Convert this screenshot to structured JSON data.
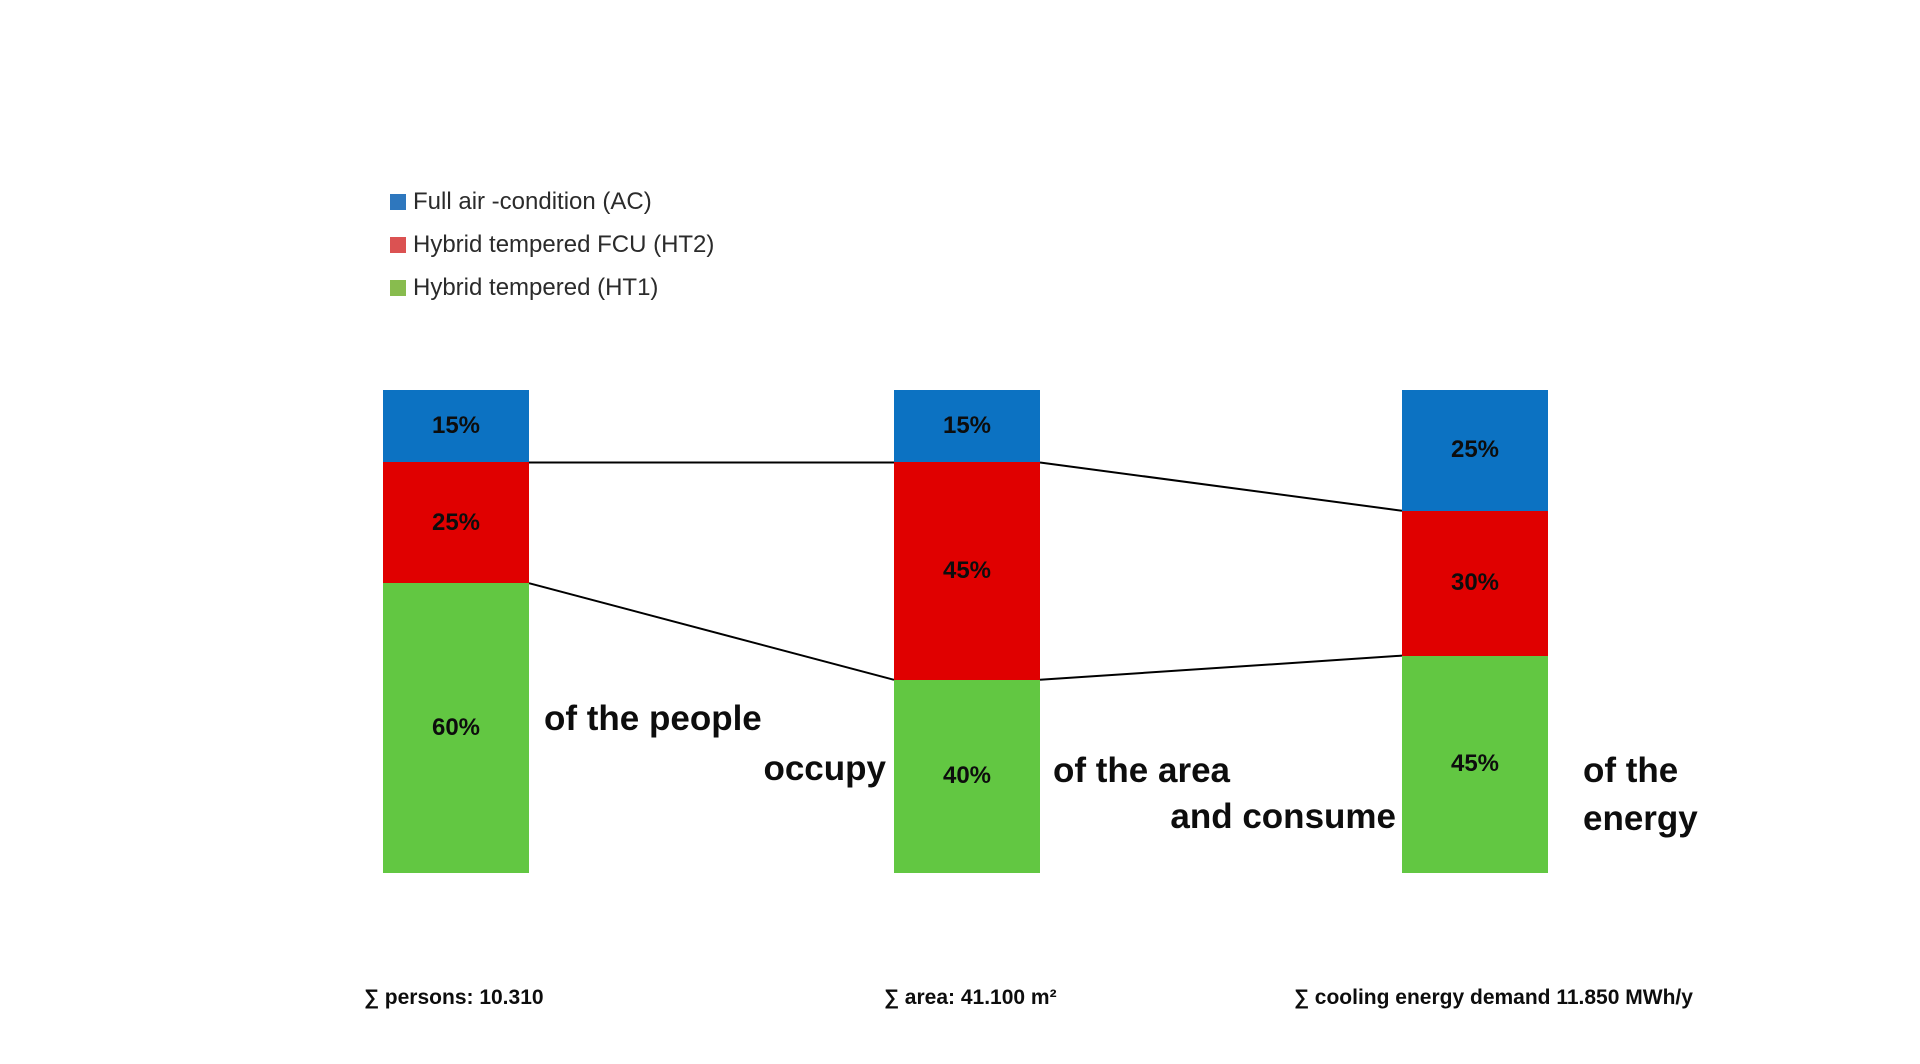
{
  "canvas": {
    "background": "#ffffff"
  },
  "chart_data": {
    "type": "bar",
    "subtype": "percent-stacked-bars-with-flow-connectors",
    "title": "",
    "categories": [
      "people",
      "area",
      "cooling energy"
    ],
    "series": [
      {
        "name": "Full air -condition (AC)",
        "legend_color": "#2E77BE",
        "bar_color": "#0C72C2",
        "values": [
          15,
          15,
          25
        ]
      },
      {
        "name": "Hybrid tempered FCU (HT2)",
        "legend_color": "#DB5252",
        "bar_color": "#E00000",
        "values": [
          25,
          45,
          30
        ]
      },
      {
        "name": "Hybrid tempered (HT1)",
        "legend_color": "#88BC4E",
        "bar_color": "#62C742",
        "values": [
          60,
          40,
          45
        ]
      }
    ],
    "stack_order_top_to_bottom": [
      "Full air -condition (AC)",
      "Hybrid tempered FCU (HT2)",
      "Hybrid tempered (HT1)"
    ],
    "label_format": "{value}%",
    "segment_labels": [
      [
        "15%",
        "25%",
        "60%"
      ],
      [
        "15%",
        "45%",
        "40%"
      ],
      [
        "25%",
        "30%",
        "45%"
      ]
    ],
    "axes_visible": false,
    "grid": false,
    "legend_position": "top-left",
    "connector_lines": "black lines join the AC/HT2 and HT2/HT1 segment boundaries between adjacent bars",
    "connector_color": "#000000",
    "annotations": [
      "of the people",
      "occupy",
      "of the area",
      "and consume",
      "of the",
      "energy"
    ],
    "footnotes": [
      "∑ persons: 10.310",
      "∑ area: 41.100 m²",
      "∑ cooling energy demand 11.850 MWh/y"
    ]
  },
  "annotations": {
    "people": "of the people",
    "occupy": "occupy",
    "area": "of the area",
    "consume": "and consume",
    "of_the": "of the",
    "energy": "energy"
  },
  "footnotes": {
    "persons": "∑ persons: 10.310",
    "area": "∑ area: 41.100 m²",
    "cooling": "∑ cooling energy demand 11.850 MWh/y"
  }
}
